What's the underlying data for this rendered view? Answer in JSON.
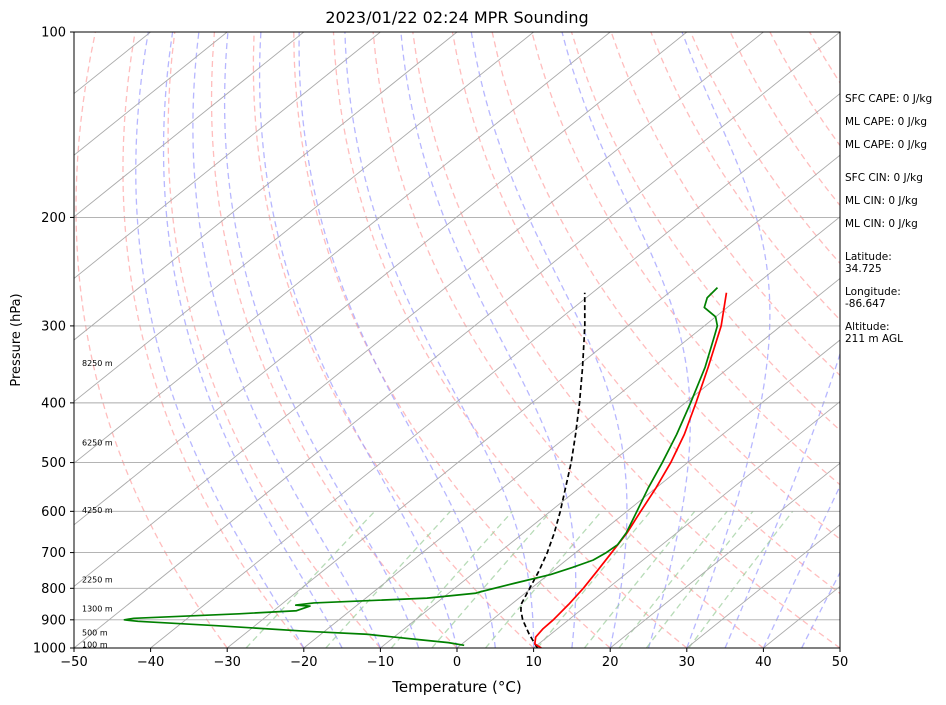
{
  "chart_data": {
    "type": "skew-t",
    "title": "2023/01/22 02:24 MPR Sounding",
    "xlabel": "Temperature (°C)",
    "ylabel": "Pressure (hPa)",
    "xlim": [
      -50,
      50
    ],
    "ylim": [
      1000,
      100
    ],
    "y_scale": "log",
    "x_ticks": [
      -50,
      -40,
      -30,
      -20,
      -10,
      0,
      10,
      20,
      30,
      40,
      50
    ],
    "x_tick_labels": [
      "−50",
      "−40",
      "−30",
      "−20",
      "−10",
      "0",
      "10",
      "20",
      "30",
      "40",
      "50"
    ],
    "y_ticks": [
      1000,
      900,
      800,
      700,
      600,
      500,
      400,
      300,
      200,
      100
    ],
    "y_tick_labels": [
      "1000",
      "900",
      "800",
      "700",
      "600",
      "500",
      "400",
      "300",
      "200",
      "100"
    ],
    "grid": true,
    "height_labels": [
      {
        "text": "100 m",
        "pressure": 988
      },
      {
        "text": "500 m",
        "pressure": 945
      },
      {
        "text": "1300 m",
        "pressure": 865
      },
      {
        "text": "2250 m",
        "pressure": 775
      },
      {
        "text": "4250 m",
        "pressure": 598
      },
      {
        "text": "6250 m",
        "pressure": 465
      },
      {
        "text": "8250 m",
        "pressure": 345
      }
    ],
    "temperature": {
      "color": "#ff0000",
      "points": [
        [
          1000,
          11.0
        ],
        [
          985,
          9.5
        ],
        [
          960,
          8.5
        ],
        [
          930,
          8.1
        ],
        [
          900,
          8.0
        ],
        [
          850,
          7.5
        ],
        [
          800,
          6.8
        ],
        [
          750,
          5.8
        ],
        [
          700,
          4.7
        ],
        [
          650,
          3.5
        ],
        [
          600,
          1.8
        ],
        [
          550,
          0.0
        ],
        [
          500,
          -2.2
        ],
        [
          450,
          -5.0
        ],
        [
          400,
          -8.6
        ],
        [
          350,
          -12.8
        ],
        [
          300,
          -17.8
        ],
        [
          265,
          -22.5
        ]
      ]
    },
    "dewpoint": {
      "color": "#008000",
      "points": [
        [
          990,
          0.5
        ],
        [
          980,
          -2.0
        ],
        [
          970,
          -6.0
        ],
        [
          960,
          -10.0
        ],
        [
          950,
          -14.0
        ],
        [
          940,
          -22.0
        ],
        [
          920,
          -35.0
        ],
        [
          905,
          -46.0
        ],
        [
          900,
          -48.0
        ],
        [
          895,
          -47.0
        ],
        [
          880,
          -34.0
        ],
        [
          870,
          -27.0
        ],
        [
          855,
          -26.0
        ],
        [
          852,
          -28.0
        ],
        [
          845,
          -26.0
        ],
        [
          830,
          -12.0
        ],
        [
          815,
          -6.5
        ],
        [
          810,
          -6.0
        ],
        [
          785,
          -3.0
        ],
        [
          760,
          0.3
        ],
        [
          740,
          2.0
        ],
        [
          720,
          3.5
        ],
        [
          700,
          4.0
        ],
        [
          680,
          4.2
        ],
        [
          650,
          3.4
        ],
        [
          600,
          1.3
        ],
        [
          550,
          -1.0
        ],
        [
          500,
          -3.3
        ],
        [
          450,
          -6.0
        ],
        [
          400,
          -9.3
        ],
        [
          350,
          -13.2
        ],
        [
          310,
          -17.2
        ],
        [
          300,
          -18.3
        ],
        [
          290,
          -20.0
        ],
        [
          280,
          -23.0
        ],
        [
          270,
          -24.2
        ],
        [
          260,
          -24.5
        ]
      ]
    },
    "parcel": {
      "color": "#000000",
      "style": "dashed",
      "points": [
        [
          1000,
          10.5
        ],
        [
          950,
          7.2
        ],
        [
          900,
          4.0
        ],
        [
          870,
          2.3
        ],
        [
          850,
          1.3
        ],
        [
          800,
          -0.2
        ],
        [
          750,
          -1.8
        ],
        [
          700,
          -3.7
        ],
        [
          650,
          -6.0
        ],
        [
          600,
          -8.7
        ],
        [
          550,
          -11.8
        ],
        [
          500,
          -15.2
        ],
        [
          450,
          -19.2
        ],
        [
          400,
          -23.8
        ],
        [
          350,
          -29.2
        ],
        [
          300,
          -35.6
        ],
        [
          265,
          -41.0
        ]
      ]
    },
    "background_lines": {
      "isotherms_every_c": 10,
      "dry_adiabat_color": "#ff9999",
      "moist_adiabat_color": "#9999ff",
      "mixing_ratio_color": "#99cc99"
    },
    "side_panel": [
      {
        "text": "SFC CAPE: 0 J/kg"
      },
      {
        "text": "ML CAPE: 0 J/kg"
      },
      {
        "text": "ML CAPE: 0 J/kg"
      },
      {
        "text": "SFC CIN: 0 J/kg"
      },
      {
        "text": "ML CIN: 0 J/kg"
      },
      {
        "text": "ML CIN: 0 J/kg"
      },
      {
        "text": "Latitude:\n34.725"
      },
      {
        "text": "Longitude:\n-86.647"
      },
      {
        "text": "Altitude:\n211 m AGL"
      }
    ]
  }
}
